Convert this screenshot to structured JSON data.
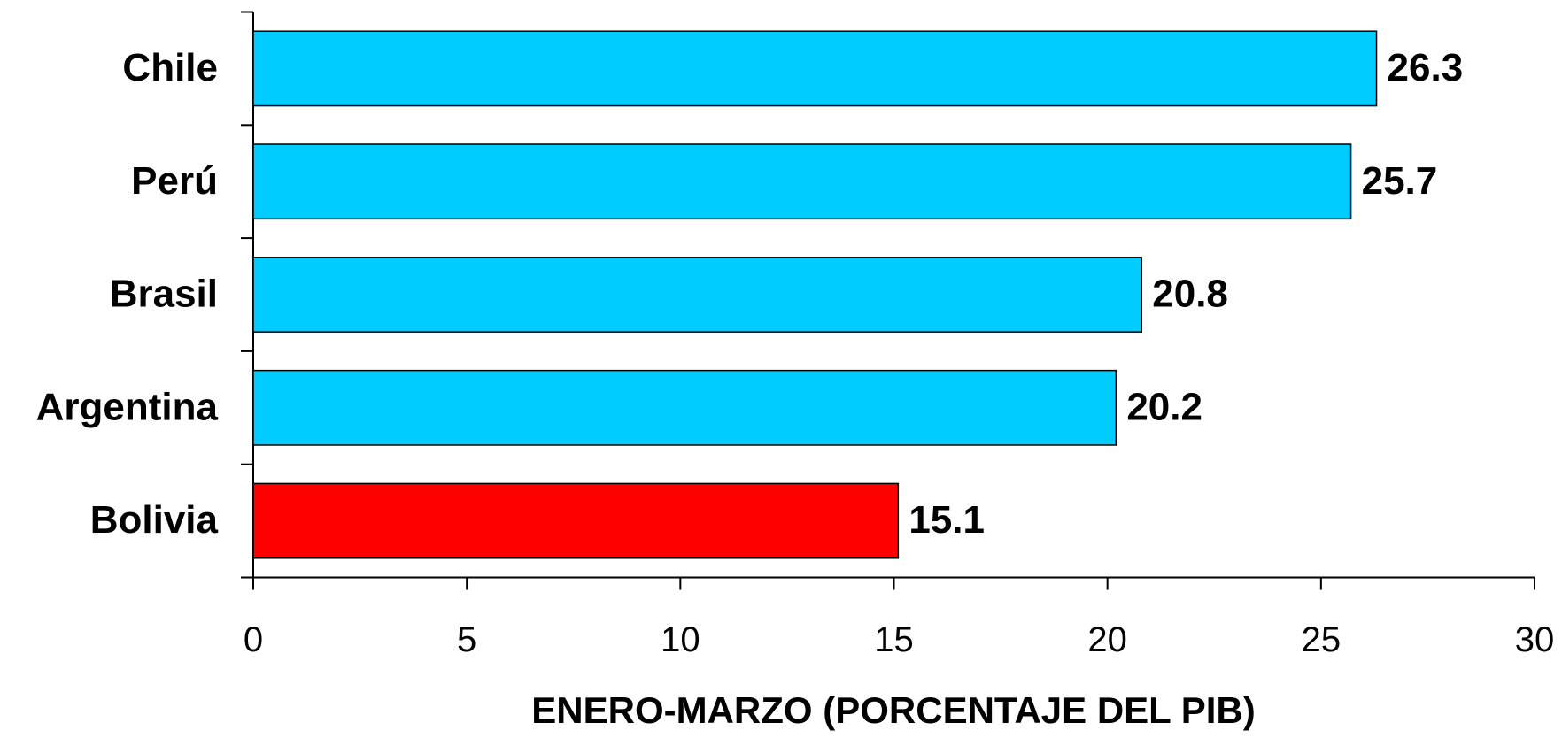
{
  "chart_data": {
    "type": "bar",
    "orientation": "horizontal",
    "categories": [
      "Chile",
      "Perú",
      "Brasil",
      "Argentina",
      "Bolivia"
    ],
    "values": [
      26.3,
      25.7,
      20.8,
      20.2,
      15.1
    ],
    "colors": [
      "#00ccff",
      "#00ccff",
      "#00ccff",
      "#00ccff",
      "#ff0000"
    ],
    "xlabel": "ENERO-MARZO (PORCENTAJE DEL PIB)",
    "xlim": [
      0,
      30
    ],
    "xticks": [
      0,
      5,
      10,
      15,
      20,
      25,
      30
    ],
    "grid": false
  }
}
